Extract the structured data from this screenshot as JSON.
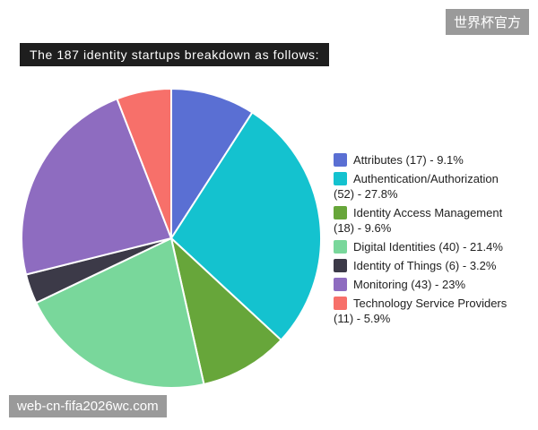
{
  "chart_data": {
    "type": "pie",
    "title": "The 187 identity startups breakdown as follows:",
    "categories": [
      "Attributes (17) - 9.1%",
      "Authentication/Authorization (52) - 27.8%",
      "Identity Access Management (18) - 9.6%",
      "Digital Identities (40) - 21.4%",
      "Identity of Things (6) - 3.2%",
      "Monitoring (43) - 23%",
      "Technology Service Providers (11) - 5.9%"
    ],
    "values": [
      9.1,
      27.8,
      9.6,
      21.4,
      3.2,
      23,
      5.9
    ],
    "colors": [
      "#5a6fd3",
      "#14c2cf",
      "#67a63a",
      "#79d79b",
      "#3c3a48",
      "#8e6cc0",
      "#f7706a"
    ]
  },
  "watermarks": [
    "世界杯官方",
    "web-cn-fifa2026wc.com"
  ]
}
